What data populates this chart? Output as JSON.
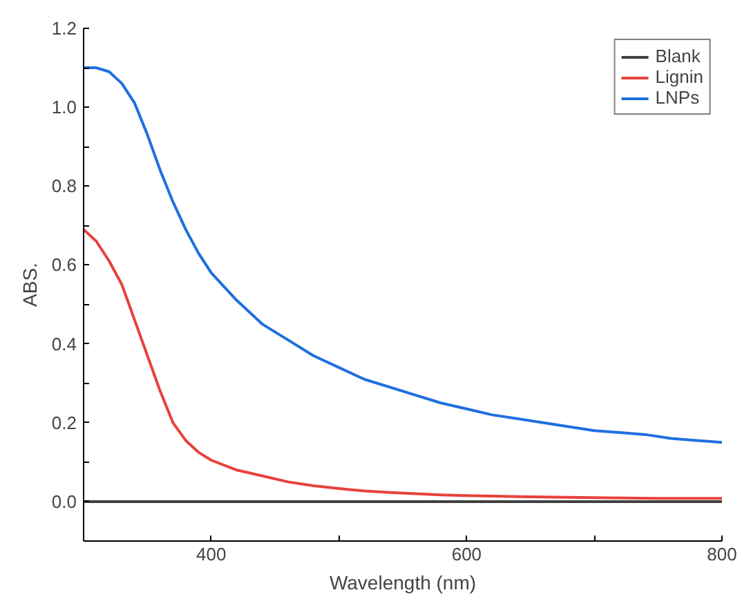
{
  "chart_data": {
    "type": "line",
    "xlabel": "Wavelength (nm)",
    "ylabel": "ABS.",
    "xlim": [
      300,
      800
    ],
    "ylim": [
      -0.1,
      1.2
    ],
    "xticks": [
      {
        "value": 300,
        "label": null
      },
      400,
      {
        "value": 500,
        "label": null
      },
      600,
      {
        "value": 700,
        "label": null
      },
      800
    ],
    "yticks": [
      {
        "value": -0.1,
        "label": null
      },
      {
        "value": 0,
        "label": "0.0"
      },
      {
        "value": 0.1,
        "label": null
      },
      0.2,
      {
        "value": 0.3,
        "label": null
      },
      0.4,
      {
        "value": 0.5,
        "label": null
      },
      0.6,
      {
        "value": 0.7,
        "label": null
      },
      0.8,
      {
        "value": 0.9,
        "label": null
      },
      {
        "value": 1.0,
        "label": "1.0"
      },
      {
        "value": 1.1,
        "label": null
      },
      1.2
    ],
    "grid": false,
    "legend": "top right",
    "marker": "none",
    "line_style": "solid",
    "series": [
      {
        "name": "Blank",
        "color": "#404040",
        "x": [
          300,
          400,
          500,
          600,
          700,
          800
        ],
        "values": [
          0,
          0,
          0,
          0,
          0,
          0
        ]
      },
      {
        "name": "Lignin",
        "color": "#e8413c",
        "x": [
          300,
          310,
          320,
          330,
          340,
          350,
          360,
          370,
          380,
          390,
          400,
          420,
          440,
          460,
          480,
          500,
          520,
          540,
          560,
          580,
          600,
          650,
          700,
          750,
          800
        ],
        "values": [
          0.69,
          0.66,
          0.61,
          0.55,
          0.46,
          0.37,
          0.28,
          0.2,
          0.155,
          0.125,
          0.105,
          0.08,
          0.065,
          0.05,
          0.04,
          0.033,
          0.027,
          0.023,
          0.02,
          0.017,
          0.015,
          0.012,
          0.01,
          0.008,
          0.008
        ]
      },
      {
        "name": "LNPs",
        "color": "#1f6fe0",
        "x": [
          300,
          310,
          320,
          330,
          340,
          350,
          360,
          370,
          380,
          390,
          400,
          420,
          440,
          460,
          480,
          500,
          520,
          540,
          560,
          580,
          600,
          620,
          640,
          660,
          680,
          700,
          720,
          740,
          760,
          780,
          800
        ],
        "values": [
          1.1,
          1.1,
          1.09,
          1.06,
          1.01,
          0.93,
          0.84,
          0.76,
          0.69,
          0.63,
          0.58,
          0.51,
          0.45,
          0.41,
          0.37,
          0.34,
          0.31,
          0.29,
          0.27,
          0.25,
          0.235,
          0.22,
          0.21,
          0.2,
          0.19,
          0.18,
          0.175,
          0.17,
          0.16,
          0.155,
          0.15
        ]
      }
    ]
  }
}
